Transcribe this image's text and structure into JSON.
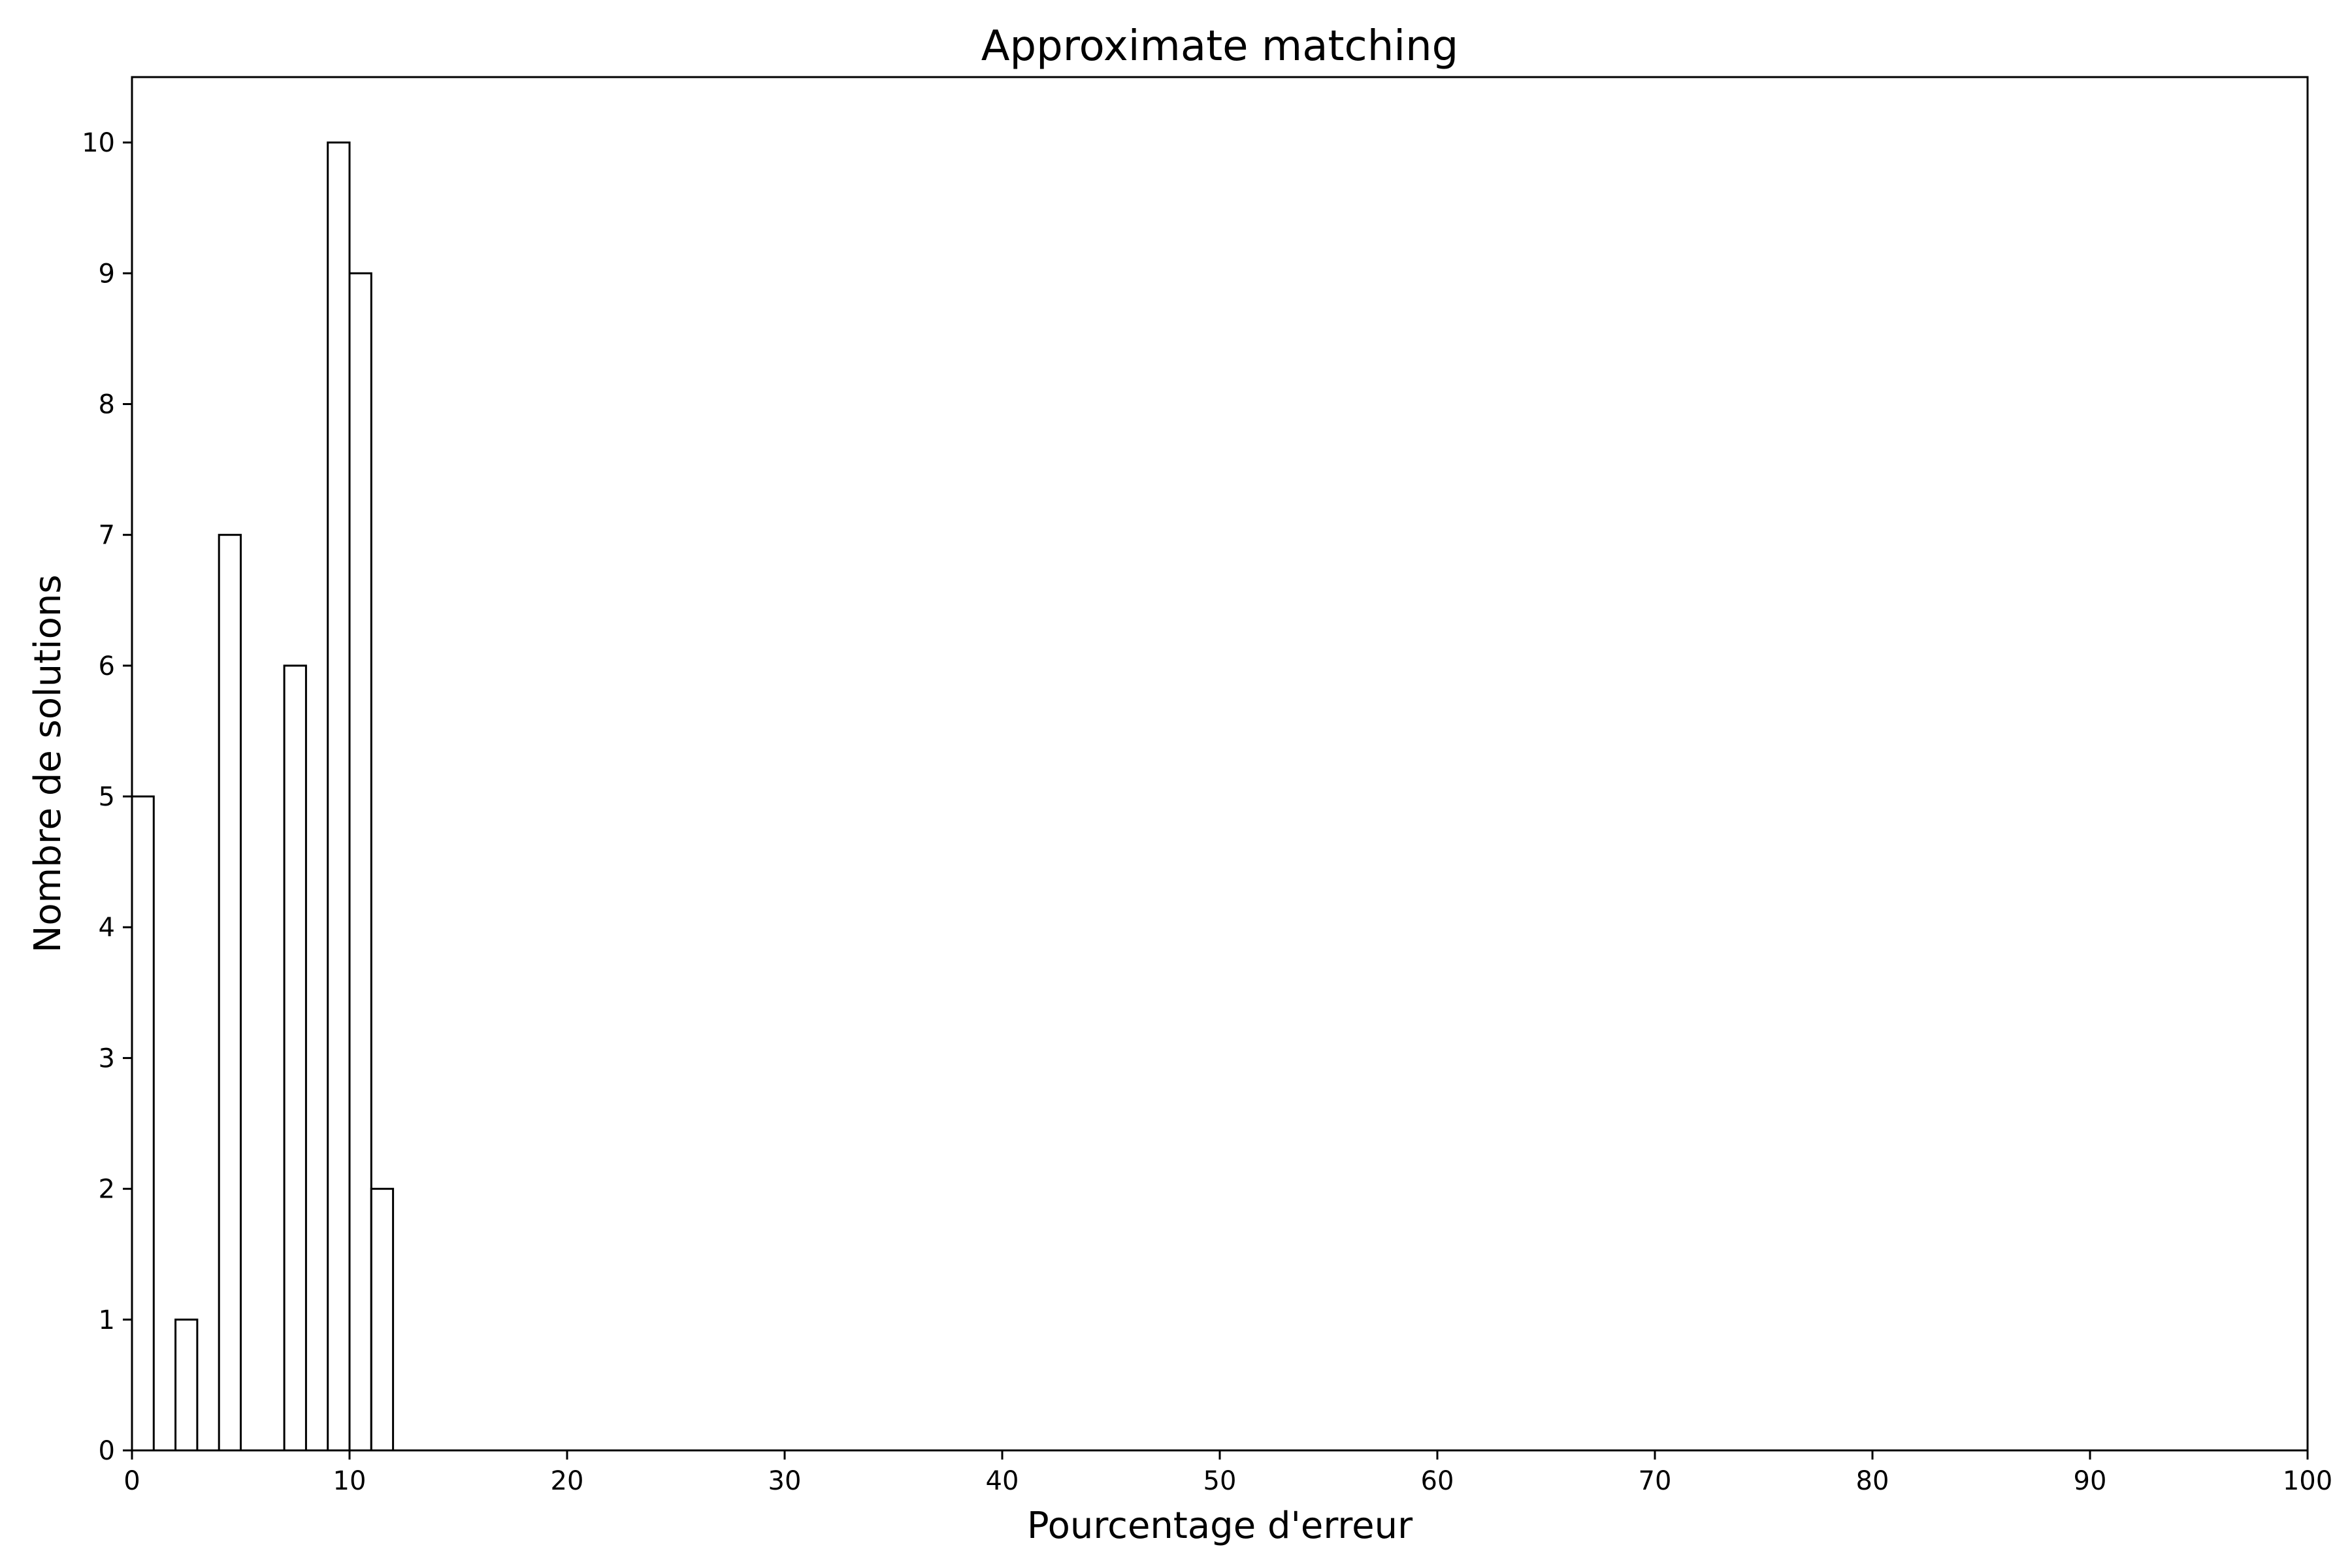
{
  "chart_data": {
    "type": "bar",
    "title": "Approximate matching",
    "xlabel": "Pourcentage d'erreur",
    "ylabel": "Nombre de solutions",
    "xlim": [
      0,
      100
    ],
    "ylim": [
      0,
      10.5
    ],
    "xticks": [
      0,
      10,
      20,
      30,
      40,
      50,
      60,
      70,
      80,
      90,
      100
    ],
    "yticks": [
      0,
      1,
      2,
      3,
      4,
      5,
      6,
      7,
      8,
      9,
      10
    ],
    "bar_width": 1,
    "bars": [
      {
        "x": 0,
        "value": 5
      },
      {
        "x": 2,
        "value": 1
      },
      {
        "x": 4,
        "value": 7
      },
      {
        "x": 7,
        "value": 6
      },
      {
        "x": 9,
        "value": 10
      },
      {
        "x": 10,
        "value": 9
      },
      {
        "x": 11,
        "value": 2
      }
    ],
    "grid": false,
    "legend": "none"
  }
}
